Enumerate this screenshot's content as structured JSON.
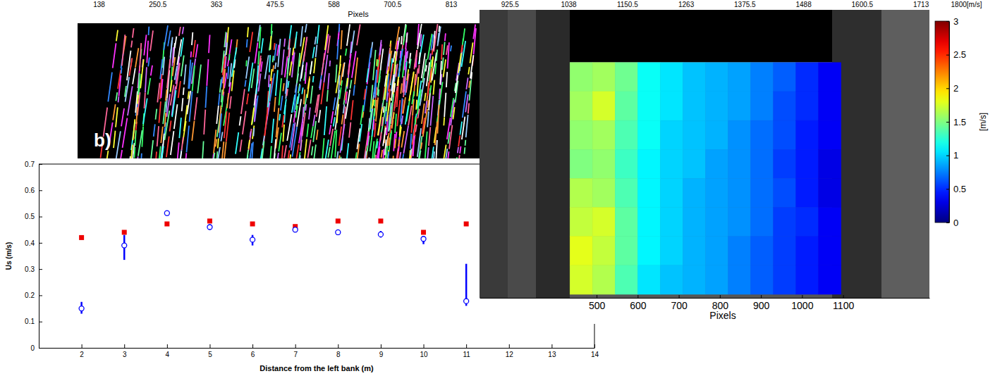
{
  "chart_data": [
    {
      "type": "image",
      "label": "b)",
      "xlabel": "Pixels",
      "xlim": [
        138,
        1800
      ],
      "xticks": [
        138,
        250.5,
        363,
        475.5,
        588,
        700.5,
        813,
        925.5,
        1038,
        1150.5,
        1263,
        1375.5,
        1488,
        1600.5,
        1713,
        {
          "value": 1800,
          "label": "1800[m/s]"
        }
      ]
    },
    {
      "type": "scatter",
      "xlabel": "Distance from the left bank (m)",
      "ylabel": "Us (m/s)",
      "xlim": [
        1,
        14
      ],
      "xticks": [
        2,
        3,
        4,
        5,
        6,
        7,
        8,
        9,
        10,
        11,
        12,
        13,
        14
      ],
      "ylim": [
        0,
        0.7
      ],
      "yticks": [
        0,
        0.1,
        0.2,
        0.3,
        0.4,
        0.5,
        0.6,
        0.7
      ],
      "x": [
        2,
        3,
        4,
        5,
        6,
        7,
        8,
        9,
        10,
        11
      ],
      "series": [
        {
          "color": "#ee0000",
          "marker": "square",
          "values": [
            0.42,
            0.44,
            0.472,
            0.483,
            0.472,
            0.462,
            0.483,
            0.483,
            0.44,
            0.472
          ]
        },
        {
          "color": "#0000ff",
          "marker": "circle",
          "values": [
            0.15,
            0.39,
            0.513,
            0.46,
            0.412,
            0.45,
            0.44,
            0.432,
            0.415,
            0.178
          ],
          "low": [
            0.13,
            0.335,
            0.505,
            0.45,
            0.39,
            0.443,
            0.43,
            0.42,
            0.395,
            0.16
          ],
          "high": [
            0.175,
            0.43,
            0.52,
            0.47,
            0.43,
            0.455,
            0.45,
            0.445,
            0.425,
            0.32
          ]
        }
      ]
    },
    {
      "type": "heatmap",
      "xlabel": "Pixels",
      "xlim": [
        215,
        1310
      ],
      "xticks": [
        500,
        600,
        700,
        800,
        900,
        1000,
        1100
      ],
      "ylim": [
        190,
        1010
      ],
      "x": [
        462.5,
        517.5,
        572.5,
        627.5,
        682.5,
        737.5,
        792.5,
        847.5,
        902.5,
        957.5,
        1012.5,
        1067.5
      ],
      "y": [
        381.25,
        463.75,
        546.25,
        628.75,
        711.25,
        793.75,
        876.25,
        958.75
      ],
      "z": [
        [
          1.55,
          1.6,
          1.45,
          1.15,
          1.05,
          0.95,
          0.9,
          0.85,
          0.75,
          0.65,
          0.5,
          0.35
        ],
        [
          1.6,
          1.75,
          1.4,
          1.15,
          1.05,
          0.95,
          0.9,
          0.85,
          0.75,
          0.6,
          0.5,
          0.35
        ],
        [
          1.55,
          1.6,
          1.35,
          1.15,
          1.0,
          0.95,
          0.9,
          0.8,
          0.7,
          0.6,
          0.45,
          0.35
        ],
        [
          1.5,
          1.55,
          1.3,
          1.1,
          1.0,
          0.95,
          0.85,
          0.8,
          0.7,
          0.55,
          0.45,
          0.3
        ],
        [
          1.65,
          1.6,
          1.35,
          1.1,
          1.0,
          0.9,
          0.85,
          0.8,
          0.7,
          0.6,
          0.45,
          0.3
        ],
        [
          1.7,
          1.75,
          1.4,
          1.1,
          1.0,
          0.9,
          0.85,
          0.8,
          0.7,
          0.55,
          0.5,
          0.35
        ],
        [
          1.8,
          1.7,
          1.4,
          1.1,
          1.0,
          0.9,
          0.85,
          0.75,
          0.65,
          0.55,
          0.45,
          0.35
        ],
        [
          1.75,
          1.65,
          1.35,
          1.05,
          0.95,
          0.9,
          0.85,
          0.75,
          0.65,
          0.55,
          0.45,
          0.35
        ]
      ],
      "colorbar_lim": [
        0,
        3
      ],
      "colorbar_ticks": [
        0,
        0.5,
        1,
        1.5,
        2,
        2.5,
        3
      ],
      "colorbar_label": "[m/s]"
    }
  ]
}
